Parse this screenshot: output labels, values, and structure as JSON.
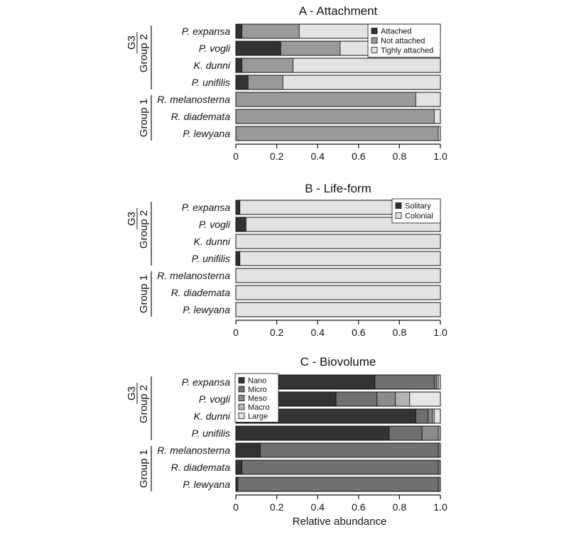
{
  "colors": {
    "Attached": "#333333",
    "Not attached": "#9a9a9a",
    "Tighly attached": "#e3e3e3",
    "Solitary": "#333333",
    "Colonial": "#e3e3e3",
    "Nano": "#333333",
    "Micro": "#707070",
    "Meso": "#8c8c8c",
    "Macro": "#b3b3b3",
    "Large": "#e6e6e6"
  },
  "groups": {
    "g3": "G3",
    "group2": "Group 2",
    "group1": "Group 1"
  },
  "chart_data": [
    {
      "type": "bar",
      "orientation": "horizontal",
      "stacked": true,
      "title": "A - Attachment",
      "categories": [
        "P. expansa",
        "P. vogli",
        "K. dunni",
        "P. unifilis",
        "R. melanosterna",
        "R. diademata",
        "P. lewyana"
      ],
      "series": [
        {
          "name": "Attached",
          "values": [
            0.03,
            0.22,
            0.03,
            0.06,
            0.0,
            0.0,
            0.0
          ]
        },
        {
          "name": "Not attached",
          "values": [
            0.28,
            0.29,
            0.25,
            0.17,
            0.88,
            0.97,
            0.99
          ]
        },
        {
          "name": "Tighly attached",
          "values": [
            0.69,
            0.49,
            0.72,
            0.77,
            0.12,
            0.03,
            0.01
          ]
        }
      ],
      "xlim": [
        0,
        1.0
      ],
      "xticks": [
        "0",
        "0.2",
        "0.4",
        "0.6",
        "0.8",
        "1.0"
      ],
      "legend": "top-right"
    },
    {
      "type": "bar",
      "orientation": "horizontal",
      "stacked": true,
      "title": "B - Life-form",
      "categories": [
        "P. expansa",
        "P. vogli",
        "K. dunni",
        "P. unifilis",
        "R. melanosterna",
        "R. diademata",
        "P. lewyana"
      ],
      "series": [
        {
          "name": "Solitary",
          "values": [
            0.02,
            0.05,
            0.0,
            0.02,
            0.0,
            0.0,
            0.0
          ]
        },
        {
          "name": "Colonial",
          "values": [
            0.98,
            0.95,
            1.0,
            0.98,
            1.0,
            1.0,
            1.0
          ]
        }
      ],
      "xlim": [
        0,
        1.0
      ],
      "xticks": [
        "0",
        "0.2",
        "0.4",
        "0.6",
        "0.8",
        "1.0"
      ],
      "legend": "top-right"
    },
    {
      "type": "bar",
      "orientation": "horizontal",
      "stacked": true,
      "title": "C - Biovolume",
      "categories": [
        "P. expansa",
        "P. vogli",
        "K. dunni",
        "P. unifilis",
        "R. melanosterna",
        "R. diademata",
        "P. lewyana"
      ],
      "series": [
        {
          "name": "Nano",
          "values": [
            0.68,
            0.49,
            0.88,
            0.75,
            0.12,
            0.03,
            0.01
          ]
        },
        {
          "name": "Micro",
          "values": [
            0.29,
            0.2,
            0.06,
            0.16,
            0.87,
            0.96,
            0.98
          ]
        },
        {
          "name": "Meso",
          "values": [
            0.01,
            0.09,
            0.02,
            0.08,
            0.01,
            0.01,
            0.01
          ]
        },
        {
          "name": "Macro",
          "values": [
            0.01,
            0.07,
            0.01,
            0.01,
            0.0,
            0.0,
            0.0
          ]
        },
        {
          "name": "Large",
          "values": [
            0.01,
            0.15,
            0.03,
            0.0,
            0.0,
            0.0,
            0.0
          ]
        }
      ],
      "xlim": [
        0,
        1.0
      ],
      "xticks": [
        "0",
        "0.2",
        "0.4",
        "0.6",
        "0.8",
        "1.0"
      ],
      "xlabel": "Relative abundance",
      "legend": "top-left"
    }
  ]
}
